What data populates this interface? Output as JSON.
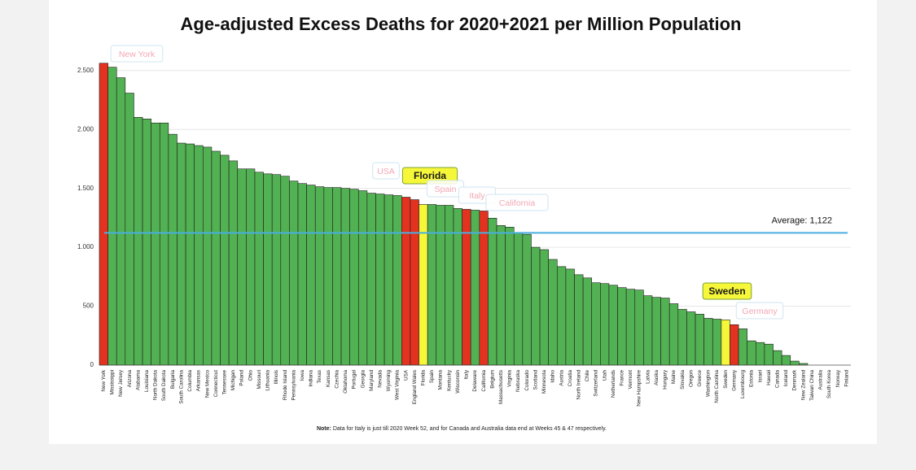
{
  "chart_data": {
    "type": "bar",
    "title": "Age-adjusted Excess Deaths for 2020+2021 per Million Population",
    "categories": [
      "New York",
      "Mississippi",
      "New Jersey",
      "Arizona",
      "Alabama",
      "Louisiana",
      "North Dakota",
      "South Dakota",
      "Bulgaria",
      "South Carolina",
      "Columbia",
      "Arkansas",
      "New Mexico",
      "Connecticut",
      "Tennessee",
      "Michigan",
      "Poland",
      "Ohio",
      "Missouri",
      "Lithuania",
      "Illinois",
      "Rhode Island",
      "Pennsylvania",
      "Iowa",
      "Indiana",
      "Texas",
      "Kansas",
      "Czechia",
      "Oklahoma",
      "Portugal",
      "Georgia",
      "Maryland",
      "Nevada",
      "Wyoming",
      "West Virginia",
      "USA",
      "England Wales",
      "Florida",
      "Spain",
      "Montana",
      "Kentucky",
      "Wisconsin",
      "Italy",
      "Delaware",
      "California",
      "Belgium",
      "Massachusetts",
      "Virginia",
      "Nebraska",
      "Colorado",
      "Scotland",
      "Minnesota",
      "Idaho",
      "Austria",
      "Croatia",
      "North Ireland",
      "Chile",
      "Switzerland",
      "Utah",
      "Netherlands",
      "France",
      "Vermont",
      "New Hampshire",
      "Latvia",
      "Alaska",
      "Hungary",
      "Maine",
      "Slovakia",
      "Oregon",
      "Greece",
      "Washington",
      "North Carolina",
      "Sweden",
      "Germany",
      "Luxembourg",
      "Estonia",
      "Israel",
      "Hawaii",
      "Canada",
      "Iceland",
      "Denmark",
      "New Zealand",
      "Taiwan China",
      "Australia",
      "South Korea",
      "Norway",
      "Finland"
    ],
    "values": [
      2562,
      2528,
      2439,
      2308,
      2103,
      2089,
      2055,
      2055,
      1959,
      1884,
      1877,
      1863,
      1850,
      1815,
      1781,
      1733,
      1665,
      1665,
      1637,
      1623,
      1617,
      1603,
      1562,
      1541,
      1528,
      1514,
      1507,
      1507,
      1500,
      1493,
      1480,
      1459,
      1452,
      1445,
      1439,
      1425,
      1404,
      1363,
      1363,
      1356,
      1356,
      1329,
      1322,
      1315,
      1308,
      1247,
      1185,
      1171,
      1123,
      1110,
      1000,
      980,
      897,
      836,
      815,
      767,
      740,
      699,
      692,
      678,
      658,
      644,
      637,
      589,
      575,
      569,
      521,
      473,
      452,
      432,
      397,
      390,
      384,
      343,
      308,
      206,
      192,
      178,
      123,
      82,
      34,
      14,
      0,
      0,
      0,
      0,
      0
    ],
    "colors": [
      "#e3321f",
      "#52b152",
      "#52b152",
      "#52b152",
      "#52b152",
      "#52b152",
      "#52b152",
      "#52b152",
      "#52b152",
      "#52b152",
      "#52b152",
      "#52b152",
      "#52b152",
      "#52b152",
      "#52b152",
      "#52b152",
      "#52b152",
      "#52b152",
      "#52b152",
      "#52b152",
      "#52b152",
      "#52b152",
      "#52b152",
      "#52b152",
      "#52b152",
      "#52b152",
      "#52b152",
      "#52b152",
      "#52b152",
      "#52b152",
      "#52b152",
      "#52b152",
      "#52b152",
      "#52b152",
      "#52b152",
      "#e3321f",
      "#e3321f",
      "#f7f73a",
      "#52b152",
      "#52b152",
      "#52b152",
      "#52b152",
      "#e3321f",
      "#52b152",
      "#e3321f",
      "#52b152",
      "#52b152",
      "#52b152",
      "#52b152",
      "#52b152",
      "#52b152",
      "#52b152",
      "#52b152",
      "#52b152",
      "#52b152",
      "#52b152",
      "#52b152",
      "#52b152",
      "#52b152",
      "#52b152",
      "#52b152",
      "#52b152",
      "#52b152",
      "#52b152",
      "#52b152",
      "#52b152",
      "#52b152",
      "#52b152",
      "#52b152",
      "#52b152",
      "#52b152",
      "#52b152",
      "#f7f73a",
      "#e3321f",
      "#52b152",
      "#52b152",
      "#52b152",
      "#52b152",
      "#52b152",
      "#52b152",
      "#52b152",
      "#52b152",
      "#52b152",
      "#52b152",
      "#52b152",
      "#52b152",
      "#52b152"
    ],
    "ylim": [
      0,
      2650
    ],
    "yticks": [
      0,
      500,
      {
        "value": 1000,
        "label": "1.000"
      },
      {
        "value": 1500,
        "label": "1.500"
      },
      {
        "value": 2000,
        "label": "2.000"
      },
      {
        "value": 2500,
        "label": "2.500"
      }
    ],
    "grid": true,
    "average": {
      "value": 1122,
      "label": "Average: 1,122",
      "color": "#4aaee0"
    },
    "annotations": [
      {
        "text": "New York",
        "style": "pink"
      },
      {
        "text": "USA",
        "style": "pink"
      },
      {
        "text": "Florida",
        "style": "yellow"
      },
      {
        "text": "Spain",
        "style": "pink"
      },
      {
        "text": "Italy",
        "style": "pink"
      },
      {
        "text": "California",
        "style": "pink"
      },
      {
        "text": "Sweden",
        "style": "yellow"
      },
      {
        "text": "Germany",
        "style": "pink"
      }
    ],
    "note_label": "Note:",
    "note": "Data for Italy is just till 2020 Week 52, and for Canada and Australia data end at Weeks 45 & 47 respectively."
  }
}
